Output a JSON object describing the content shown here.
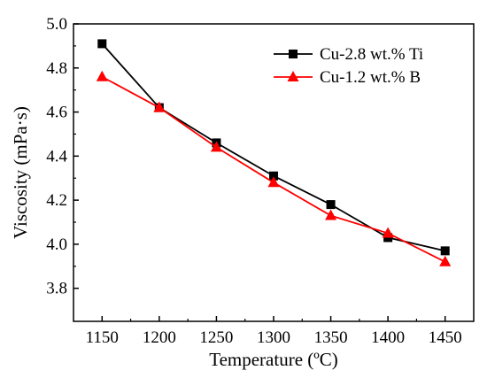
{
  "chart_data": {
    "type": "line",
    "title": "",
    "xlabel": "Temperature (ºC)",
    "ylabel": "Viscosity (mPa·s)",
    "xlim": [
      1125,
      1475
    ],
    "ylim": [
      3.65,
      5.0
    ],
    "x_ticks": [
      1150,
      1200,
      1250,
      1300,
      1350,
      1400,
      1450
    ],
    "y_ticks": [
      3.8,
      4.0,
      4.2,
      4.4,
      4.6,
      4.8,
      5.0
    ],
    "x": [
      1150,
      1200,
      1250,
      1300,
      1350,
      1400,
      1450
    ],
    "grid": false,
    "legend_position": "top-right",
    "series": [
      {
        "name": "Cu-2.8 wt.% Ti",
        "color": "#000000",
        "marker": "square",
        "values": [
          4.91,
          4.62,
          4.46,
          4.31,
          4.18,
          4.03,
          3.97
        ]
      },
      {
        "name": "Cu-1.2 wt.% B",
        "color": "#ff0000",
        "marker": "triangle",
        "values": [
          4.76,
          4.62,
          4.44,
          4.28,
          4.13,
          4.05,
          3.92
        ]
      }
    ]
  }
}
